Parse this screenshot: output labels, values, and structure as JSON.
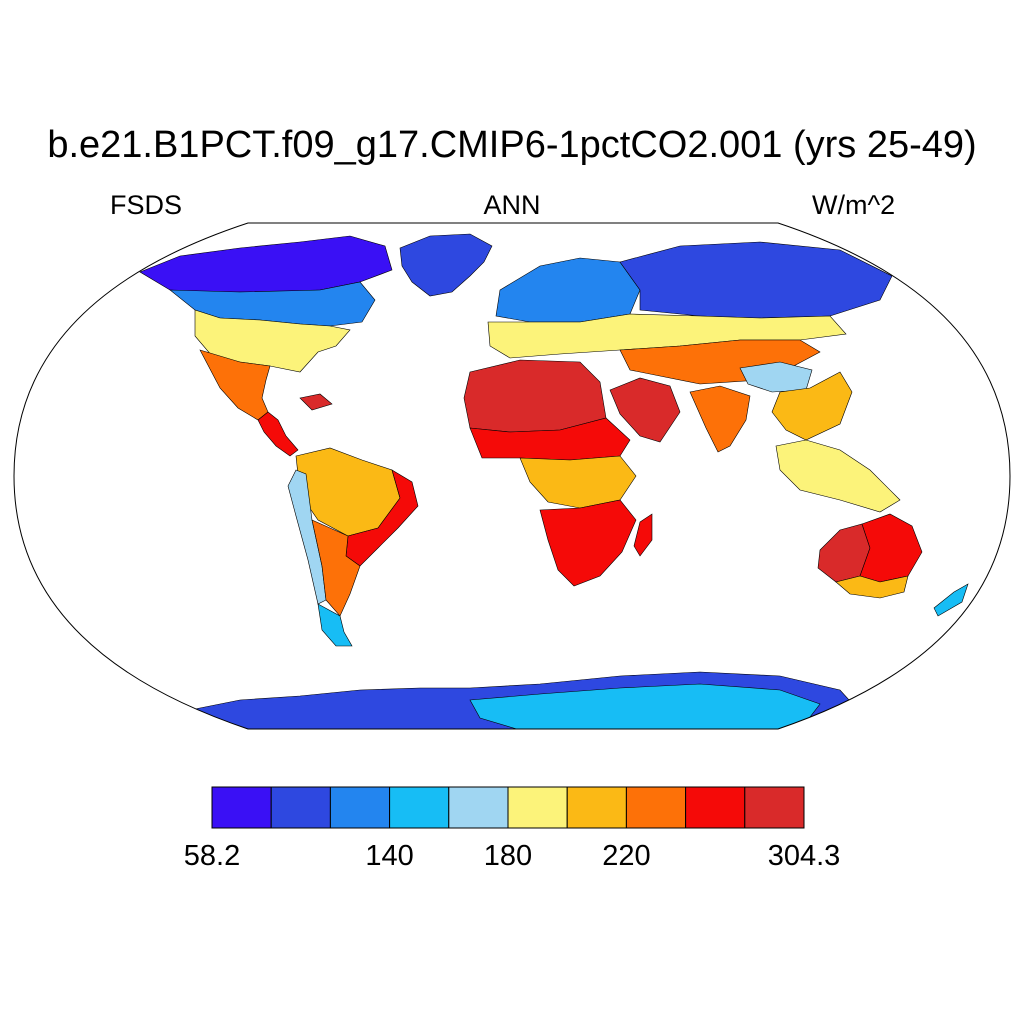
{
  "title": "b.e21.B1PCT.f09_g17.CMIP6-1pctCO2.001 (yrs 25-49)",
  "subtitle": {
    "left": "FSDS",
    "center": "ANN",
    "right": "W/m^2"
  },
  "colorbar": {
    "colors": [
      "#3a10f5",
      "#2e48e0",
      "#2385ef",
      "#17bdf5",
      "#a0d6f2",
      "#fcf37a",
      "#fbb915",
      "#fd7108",
      "#f50a08",
      "#d92a2a"
    ],
    "labels": [
      {
        "text": "58.2",
        "boundary": 0
      },
      {
        "text": "140",
        "boundary": 3
      },
      {
        "text": "180",
        "boundary": 5
      },
      {
        "text": "220",
        "boundary": 7
      },
      {
        "text": "304.3",
        "boundary": 10
      }
    ]
  },
  "chart_data": {
    "type": "heatmap",
    "variable": "FSDS",
    "season": "ANN",
    "units": "W/m^2",
    "min": 58.2,
    "max": 304.3,
    "projection": "Robinson",
    "regions": [
      {
        "region": "Greenland",
        "band": 1
      },
      {
        "region": "Canada north",
        "band": 0
      },
      {
        "region": "Canada south",
        "band": 2
      },
      {
        "region": "United States",
        "band": 5
      },
      {
        "region": "Mexico",
        "band": 7
      },
      {
        "region": "Central America",
        "band": 8
      },
      {
        "region": "Amazon",
        "band": 6
      },
      {
        "region": "Brazil east",
        "band": 8
      },
      {
        "region": "Andes",
        "band": 4
      },
      {
        "region": "Patagonia",
        "band": 3
      },
      {
        "region": "Europe north",
        "band": 2
      },
      {
        "region": "Europe south",
        "band": 5
      },
      {
        "region": "Siberia",
        "band": 1
      },
      {
        "region": "Sahara",
        "band": 9
      },
      {
        "region": "Arabia",
        "band": 9
      },
      {
        "region": "Sahel",
        "band": 8
      },
      {
        "region": "Central Africa",
        "band": 6
      },
      {
        "region": "Southern Africa",
        "band": 8
      },
      {
        "region": "Madagascar",
        "band": 8
      },
      {
        "region": "Central Asia",
        "band": 7
      },
      {
        "region": "India",
        "band": 7
      },
      {
        "region": "Tibet",
        "band": 4
      },
      {
        "region": "China",
        "band": 6
      },
      {
        "region": "Southeast Asia",
        "band": 5
      },
      {
        "region": "Australia interior",
        "band": 8
      },
      {
        "region": "Australia west",
        "band": 9
      },
      {
        "region": "Australia south",
        "band": 6
      },
      {
        "region": "New Zealand",
        "band": 3
      },
      {
        "region": "Antarctica coast",
        "band": 1
      },
      {
        "region": "Antarctica interior",
        "band": 3
      }
    ]
  }
}
